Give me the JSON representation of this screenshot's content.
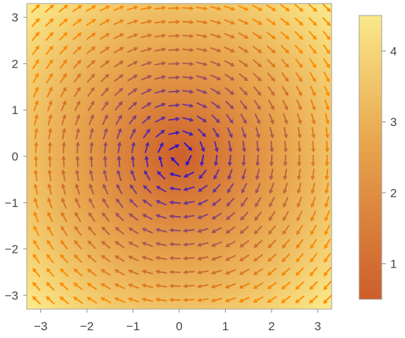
{
  "chart_data": {
    "type": "vector-field",
    "title": "",
    "xlabel": "",
    "ylabel": "",
    "xlim": [
      -3.3,
      3.3
    ],
    "ylim": [
      -3.3,
      3.3
    ],
    "x_ticks": [
      -3,
      -2,
      -1,
      0,
      1,
      2,
      3
    ],
    "y_ticks": [
      -3,
      -2,
      -1,
      0,
      1,
      2,
      3
    ],
    "x_tick_labels": [
      "−3",
      "−2",
      "−1",
      "0",
      "1",
      "2",
      "3"
    ],
    "y_tick_labels": [
      "−3",
      "−2",
      "−1",
      "0",
      "1",
      "2",
      "3"
    ],
    "field": {
      "description": "clockwise circulation around origin",
      "x": [
        -3.1,
        -2.8,
        -2.5,
        -2.2,
        -1.9,
        -1.6,
        -1.3,
        -1.0,
        -0.7,
        -0.4,
        -0.1,
        0.2,
        0.5,
        0.8,
        1.1,
        1.4,
        1.7,
        2.0,
        2.3,
        2.6,
        2.9,
        3.2
      ],
      "y": [
        -3.1,
        -2.8,
        -2.5,
        -2.2,
        -1.9,
        -1.6,
        -1.3,
        -1.0,
        -0.7,
        -0.4,
        -0.1,
        0.2,
        0.5,
        0.8,
        1.1,
        1.4,
        1.7,
        2.0,
        2.3,
        2.6,
        2.9,
        3.2
      ],
      "vector": "(y, -x) normalized",
      "arrow_color_low": "#2a0fd0",
      "arrow_color_high": "#ff8c00"
    },
    "density": {
      "description": "magnitude sqrt(x^2+y^2) shown as background",
      "min": 0.5,
      "max": 4.5
    },
    "colorbar": {
      "range": [
        0.5,
        4.5
      ],
      "ticks": [
        1,
        2,
        3,
        4
      ],
      "tick_labels": [
        "1",
        "2",
        "3",
        "4"
      ],
      "color_low": "#cc5e2b",
      "color_mid": "#e8a54d",
      "color_high": "#fae98a"
    },
    "grid": false,
    "legend": "colorbar-right"
  }
}
